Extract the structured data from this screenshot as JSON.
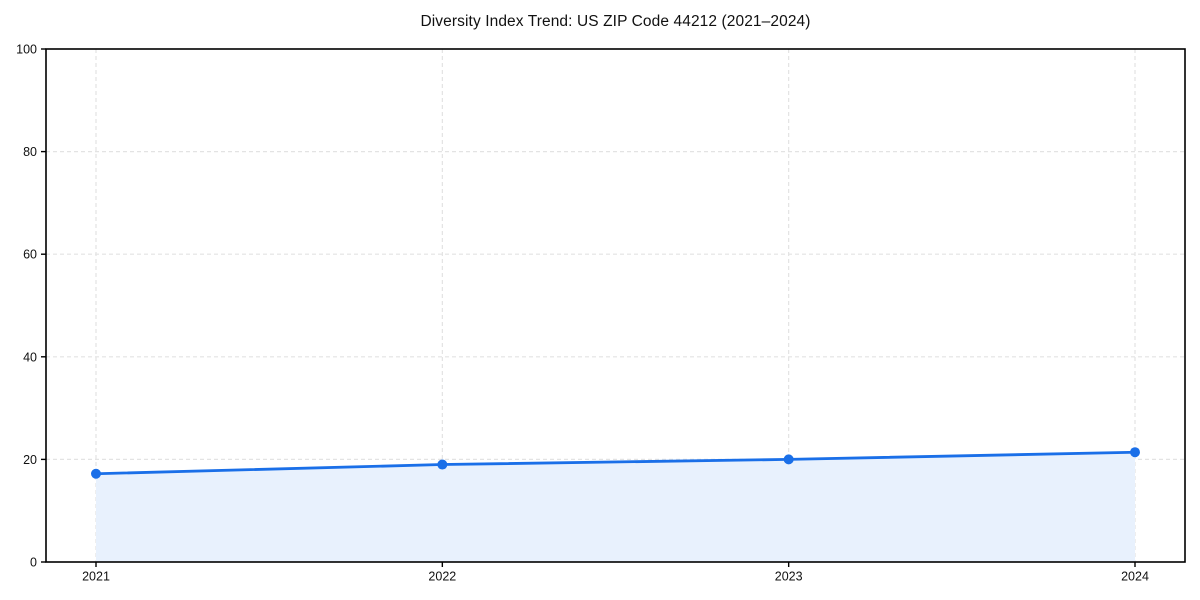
{
  "chart_data": {
    "type": "area",
    "title": "Diversity Index Trend: US ZIP Code 44212 (2021–2024)",
    "categories": [
      "2021",
      "2022",
      "2023",
      "2024"
    ],
    "series": [
      {
        "name": "Diversity Index",
        "values": [
          17.2,
          19.0,
          20.0,
          21.4
        ]
      }
    ],
    "values": [
      17.2,
      19.0,
      20.0,
      21.4
    ],
    "xlabel": "",
    "ylabel": "",
    "ylim": [
      0,
      100
    ],
    "yticks": [
      0,
      20,
      40,
      60,
      80,
      100
    ],
    "grid": true,
    "grid_style": "dashed",
    "legend": "none",
    "marker": "circle",
    "colors": {
      "line": "#1a6fe8",
      "marker": "#1a6fe8",
      "fill": "#e8f1fd",
      "grid": "#e3e3e3",
      "spine": "#000000",
      "text": "#111111",
      "background": "#ffffff"
    }
  }
}
